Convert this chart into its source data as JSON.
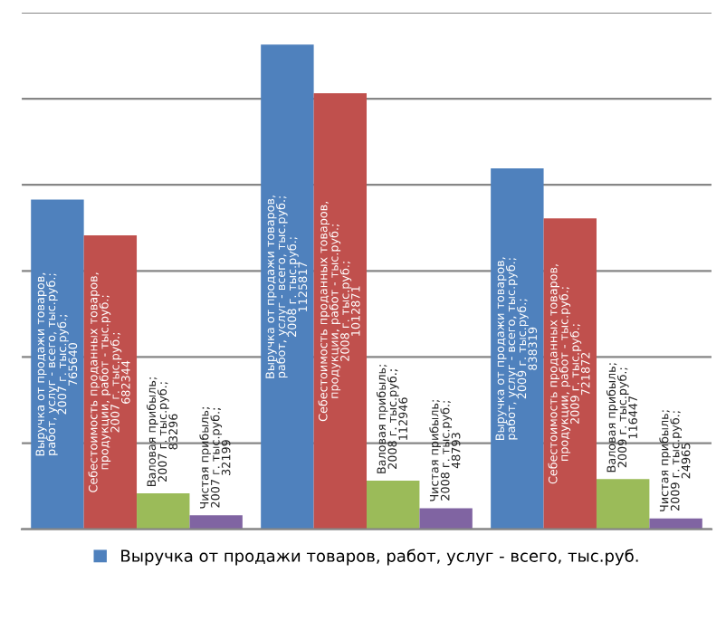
{
  "chart_data": {
    "type": "bar",
    "categories": [
      null,
      null,
      null
    ],
    "series": [
      {
        "name": "Выручка от продажи товаров, работ, услуг - всего, тыс.руб.",
        "color": "#4f81bd",
        "values": [
          765640,
          1125817,
          838319
        ],
        "value_labels": [
          "Выручка от продажи товаров, работ, услуг - всего, тыс.руб.; 2007 г. тыс.руб.; 765640",
          "Выручка от продажи товаров, работ, услуг - всего, тыс.руб.; 2008 г. тыс.руб.; 1125817",
          "Выручка от продажи товаров, работ, услуг - всего, тыс.руб.; 2009 г. тыс.руб.; 838319"
        ]
      },
      {
        "color": "#c0504d",
        "values": [
          682344,
          1012871,
          721872
        ],
        "value_labels": [
          "Себестоимость проданных товаров, продукции, работ - тыс.руб.; 2007 г. тыс.руб.; 682344",
          "Себестоимость проданных товаров, продукции, работ - тыс.руб.; 2008 г. тыс.руб.; 1012871",
          "Себестоимость проданных товаров, продукции, работ - тыс.руб.; 2009 г. тыс.руб.; 721872"
        ]
      },
      {
        "color": "#9bbb59",
        "values": [
          83296,
          112946,
          116447
        ],
        "value_labels": [
          "Валовая прибыль; 2007 г. тыс.руб.; 83296",
          "Валовая прибыль; 2008 г. тыс.руб.; 112946",
          "Валовая прибыль; 2009 г. тыс.руб.; 116447"
        ]
      },
      {
        "color": "#8064a2",
        "values": [
          32199,
          48793,
          24965
        ],
        "value_labels": [
          "Чистая прибыль; 2007 г. тыс.руб.; 32199",
          "Чистая прибыль; 2008 г. тыс.руб.; 48793",
          "Чистая прибыль; 2009 г. тыс.руб.; 24965"
        ]
      }
    ],
    "ylim": [
      0,
      1200000
    ],
    "yticks": [
      {
        "value": 0,
        "label": null
      },
      {
        "value": 200000,
        "label": null
      },
      {
        "value": 400000,
        "label": null
      },
      {
        "value": 600000,
        "label": null
      },
      {
        "value": 800000,
        "label": null
      },
      {
        "value": 1000000,
        "label": null
      },
      {
        "value": 1200000,
        "label": null
      }
    ],
    "grid": "y",
    "legend": "bottom"
  }
}
